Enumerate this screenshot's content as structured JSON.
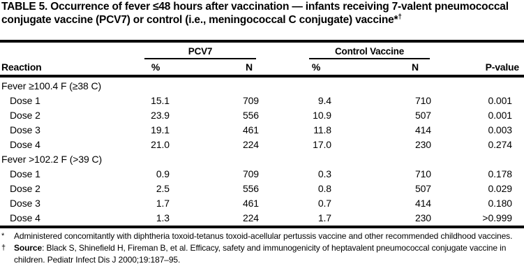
{
  "title": {
    "text": "TABLE 5. Occurrence of fever ≤48 hours after vaccination — infants receiving 7-valent pneumococcal conjugate vaccine (PCV7) or control (i.e., meningococcal C conjugate) vaccine*",
    "marker_sup": "†"
  },
  "table": {
    "group_headers": [
      {
        "label": "PCV7"
      },
      {
        "label": "Control Vaccine"
      }
    ],
    "columns": {
      "reaction": "Reaction",
      "pcv7_pct": "%",
      "pcv7_n": "N",
      "ctrl_pct": "%",
      "ctrl_n": "N",
      "pvalue": "P-value"
    },
    "sections": [
      {
        "header": "Fever ≥100.4 F (≥38 C)",
        "rows": [
          {
            "label": "Dose 1",
            "pcv7_pct": "15.1",
            "pcv7_n": "709",
            "ctrl_pct": "9.4",
            "ctrl_n": "710",
            "p": "0.001"
          },
          {
            "label": "Dose 2",
            "pcv7_pct": "23.9",
            "pcv7_n": "556",
            "ctrl_pct": "10.9",
            "ctrl_n": "507",
            "p": "0.001"
          },
          {
            "label": "Dose 3",
            "pcv7_pct": "19.1",
            "pcv7_n": "461",
            "ctrl_pct": "11.8",
            "ctrl_n": "414",
            "p": "0.003"
          },
          {
            "label": "Dose 4",
            "pcv7_pct": "21.0",
            "pcv7_n": "224",
            "ctrl_pct": "17.0",
            "ctrl_n": "230",
            "p": "0.274"
          }
        ]
      },
      {
        "header": "Fever >102.2 F (>39 C)",
        "rows": [
          {
            "label": "Dose 1",
            "pcv7_pct": "0.9",
            "pcv7_n": "709",
            "ctrl_pct": "0.3",
            "ctrl_n": "710",
            "p": "0.178"
          },
          {
            "label": "Dose 2",
            "pcv7_pct": "2.5",
            "pcv7_n": "556",
            "ctrl_pct": "0.8",
            "ctrl_n": "507",
            "p": "0.029"
          },
          {
            "label": "Dose 3",
            "pcv7_pct": "1.7",
            "pcv7_n": "461",
            "ctrl_pct": "0.7",
            "ctrl_n": "414",
            "p": "0.180"
          },
          {
            "label": "Dose 4",
            "pcv7_pct": "1.3",
            "pcv7_n": "224",
            "ctrl_pct": "1.7",
            "ctrl_n": "230",
            "p": ">0.999"
          }
        ]
      }
    ]
  },
  "footnotes": [
    {
      "marker": "*",
      "bold_prefix": "",
      "text": "Administered concomitantly with diphtheria toxoid-tetanus toxoid-acellular pertussis vaccine and other recommended childhood vaccines."
    },
    {
      "marker": "†",
      "bold_prefix": "Source",
      "text": ": Black S, Shinefield H, Fireman B, et al. Efficacy, safety and immunogenicity of heptavalent pneumococcal conjugate vaccine in children. Pediatr Infect Dis J 2000;19:187–95."
    }
  ],
  "colors": {
    "text": "#000000",
    "background": "#ffffff"
  }
}
